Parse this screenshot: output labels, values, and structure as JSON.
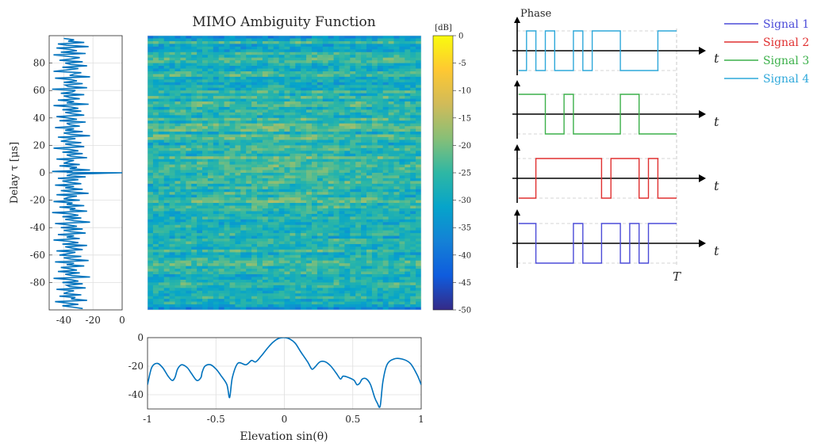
{
  "chart_data": [
    {
      "type": "heatmap",
      "title": "MIMO Ambiguity Function",
      "colorbar": {
        "unit": "[dB]",
        "range": [
          -50,
          0
        ],
        "ticks": [
          "0",
          "-5",
          "-10",
          "-15",
          "-20",
          "-25",
          "-30",
          "-35",
          "-40",
          "-45",
          "-50"
        ],
        "colormap": "parula"
      },
      "x_range": [
        -1,
        1
      ],
      "y_range": [
        -100,
        100
      ]
    },
    {
      "type": "line",
      "ylabel": "Delay τ [μs]",
      "xlim": [
        -50,
        0
      ],
      "ylim": [
        -100,
        100
      ],
      "xticks": [
        "-40",
        "-20",
        "0"
      ],
      "yticks": [
        "80",
        "60",
        "40",
        "20",
        "0",
        "-20",
        "-40",
        "-60",
        "-80"
      ],
      "grid": true,
      "color": "#0072BD",
      "x": [
        -40,
        -33,
        -37,
        -26,
        -44,
        -38,
        -23,
        -45,
        -36,
        -31,
        -42,
        -25,
        -47,
        -38,
        -29,
        -35,
        -43,
        -27,
        -39,
        -35,
        -24,
        -41,
        -30,
        -38,
        -47,
        -28,
        -33,
        -36,
        -22,
        -46,
        -35,
        -31,
        -40,
        -27,
        -39,
        -37,
        -24,
        -48,
        -32,
        -34,
        -42,
        -26,
        -40,
        -36,
        -29,
        -44,
        -33,
        -38,
        -23,
        -47,
        -35,
        -30,
        -41,
        -28,
        -39,
        -34,
        -26,
        -45,
        -37,
        -31,
        -43,
        -25,
        -38,
        -36,
        -29,
        -46,
        -33,
        -39,
        -27,
        -40,
        -35,
        -22,
        -44,
        -32,
        -37,
        -42,
        -28,
        -39,
        -34,
        -26,
        -47,
        -36,
        -30,
        -41,
        -27,
        -38,
        -35,
        -24,
        -45,
        -33,
        -37,
        -40,
        -29,
        -43,
        -31,
        -36,
        -22,
        -48,
        -34,
        -38,
        0,
        -34,
        -38,
        -25,
        -44,
        -30,
        -41,
        -36,
        -28,
        -46,
        -33,
        -39,
        -27,
        -42,
        -35,
        -23,
        -45,
        -31,
        -37,
        -40,
        -29,
        -47,
        -34,
        -38,
        -26,
        -43,
        -32,
        -36,
        -24,
        -48,
        -35,
        -30,
        -41,
        -28,
        -39,
        -33,
        -22,
        -46,
        -37,
        -31,
        -42,
        -27,
        -40,
        -35,
        -25,
        -44,
        -33,
        -38,
        -29,
        -47,
        -36,
        -30,
        -41,
        -24,
        -39,
        -34,
        -27,
        -45,
        -32,
        -37,
        -43,
        -28,
        -40,
        -35,
        -23,
        -46,
        -33,
        -38,
        -26,
        -42,
        -36,
        -31,
        -44,
        -29,
        -39,
        -34,
        -22,
        -47,
        -35,
        -30,
        -41,
        -27,
        -38,
        -36,
        -25,
        -45,
        -33,
        -37,
        -40,
        -28,
        -43,
        -32,
        -35,
        -24,
        -46,
        -38,
        -30,
        -41,
        -34,
        -27
      ],
      "y": [
        98,
        97,
        96,
        95,
        94,
        93,
        92,
        91,
        90,
        89,
        88,
        87,
        86,
        85,
        84,
        83,
        82,
        81,
        80,
        79,
        78,
        77,
        76,
        75,
        74,
        73,
        72,
        71,
        70,
        69,
        68,
        67,
        66,
        65,
        64,
        63,
        62,
        61,
        60,
        59,
        58,
        57,
        56,
        55,
        54,
        53,
        52,
        51,
        50,
        49,
        48,
        47,
        46,
        45,
        44,
        43,
        42,
        41,
        40,
        39,
        38,
        37,
        36,
        35,
        34,
        33,
        32,
        31,
        30,
        29,
        28,
        27,
        26,
        25,
        24,
        23,
        22,
        21,
        20,
        19,
        18,
        17,
        16,
        15,
        14,
        13,
        12,
        11,
        10,
        9,
        8,
        7,
        6,
        5,
        4,
        3,
        2,
        1,
        0.5,
        0.2,
        0,
        -1,
        -2,
        -3,
        -4,
        -5,
        -6,
        -7,
        -8,
        -9,
        -10,
        -11,
        -12,
        -13,
        -14,
        -15,
        -16,
        -17,
        -18,
        -19,
        -20,
        -21,
        -22,
        -23,
        -24,
        -25,
        -26,
        -27,
        -28,
        -29,
        -30,
        -31,
        -32,
        -33,
        -34,
        -35,
        -36,
        -37,
        -38,
        -39,
        -40,
        -41,
        -42,
        -43,
        -44,
        -45,
        -46,
        -47,
        -48,
        -49,
        -50,
        -51,
        -52,
        -53,
        -54,
        -55,
        -56,
        -57,
        -58,
        -59,
        -60,
        -61,
        -62,
        -63,
        -64,
        -65,
        -66,
        -67,
        -68,
        -69,
        -70,
        -71,
        -72,
        -73,
        -74,
        -75,
        -76,
        -77,
        -78,
        -79,
        -80,
        -81,
        -82,
        -83,
        -84,
        -85,
        -86,
        -87,
        -88,
        -89,
        -90,
        -91,
        -92,
        -93,
        -94,
        -95,
        -96,
        -97,
        -98,
        -99
      ]
    },
    {
      "type": "line",
      "xlabel": "Elevation sin(θ)",
      "xlim": [
        -1,
        1
      ],
      "ylim": [
        -50,
        0
      ],
      "xticks": [
        "-1",
        "-0.5",
        "0",
        "0.5",
        "1"
      ],
      "yticks": [
        "0",
        "-20",
        "-40"
      ],
      "grid": true,
      "color": "#0072BD",
      "x": [
        -1,
        -0.97,
        -0.93,
        -0.89,
        -0.85,
        -0.82,
        -0.8,
        -0.78,
        -0.75,
        -0.71,
        -0.68,
        -0.64,
        -0.61,
        -0.6,
        -0.58,
        -0.54,
        -0.5,
        -0.46,
        -0.42,
        -0.4,
        -0.38,
        -0.34,
        -0.28,
        -0.24,
        -0.21,
        -0.17,
        -0.12,
        -0.08,
        -0.04,
        0,
        0.04,
        0.08,
        0.12,
        0.17,
        0.2,
        0.22,
        0.26,
        0.3,
        0.34,
        0.38,
        0.41,
        0.43,
        0.47,
        0.51,
        0.53,
        0.55,
        0.57,
        0.6,
        0.63,
        0.66,
        0.68,
        0.7,
        0.72,
        0.75,
        0.8,
        0.86,
        0.92,
        0.97,
        1
      ],
      "y": [
        -33,
        -21,
        -18,
        -21,
        -27,
        -30,
        -28,
        -22,
        -19,
        -21,
        -25,
        -30,
        -28,
        -24,
        -20,
        -19,
        -22,
        -27,
        -33,
        -42,
        -28,
        -18,
        -19,
        -16,
        -17,
        -13,
        -7,
        -3,
        -0.5,
        0,
        -1,
        -4,
        -10,
        -17,
        -22,
        -21,
        -17,
        -17,
        -20,
        -25,
        -29,
        -27,
        -28,
        -30,
        -33,
        -32,
        -29,
        -29,
        -33,
        -42,
        -46,
        -48,
        -31,
        -19,
        -15,
        -15,
        -18,
        -26,
        -33
      ]
    },
    {
      "type": "line",
      "axis_label": "Phase",
      "series": [
        {
          "name": "Signal 1",
          "color": "#4B4BD8",
          "levels": [
            1,
            1,
            0,
            0,
            0,
            0,
            1,
            0,
            0,
            1,
            1,
            0,
            1,
            0,
            1,
            1,
            1
          ]
        },
        {
          "name": "Signal 2",
          "color": "#E03030",
          "levels": [
            0,
            0,
            1,
            1,
            1,
            1,
            1,
            1,
            1,
            0,
            1,
            1,
            1,
            0,
            1,
            0,
            0
          ]
        },
        {
          "name": "Signal 3",
          "color": "#3CB04A",
          "levels": [
            1,
            1,
            1,
            0,
            0,
            1,
            0,
            0,
            0,
            0,
            0,
            1,
            1,
            0,
            0,
            0,
            0
          ]
        },
        {
          "name": "Signal 4",
          "color": "#2EA8DA",
          "levels": [
            0,
            1,
            0,
            1,
            0,
            0,
            1,
            0,
            1,
            1,
            1,
            0,
            0,
            0,
            0,
            1,
            1
          ]
        }
      ],
      "xlabel": "t",
      "end_label": "T"
    }
  ]
}
